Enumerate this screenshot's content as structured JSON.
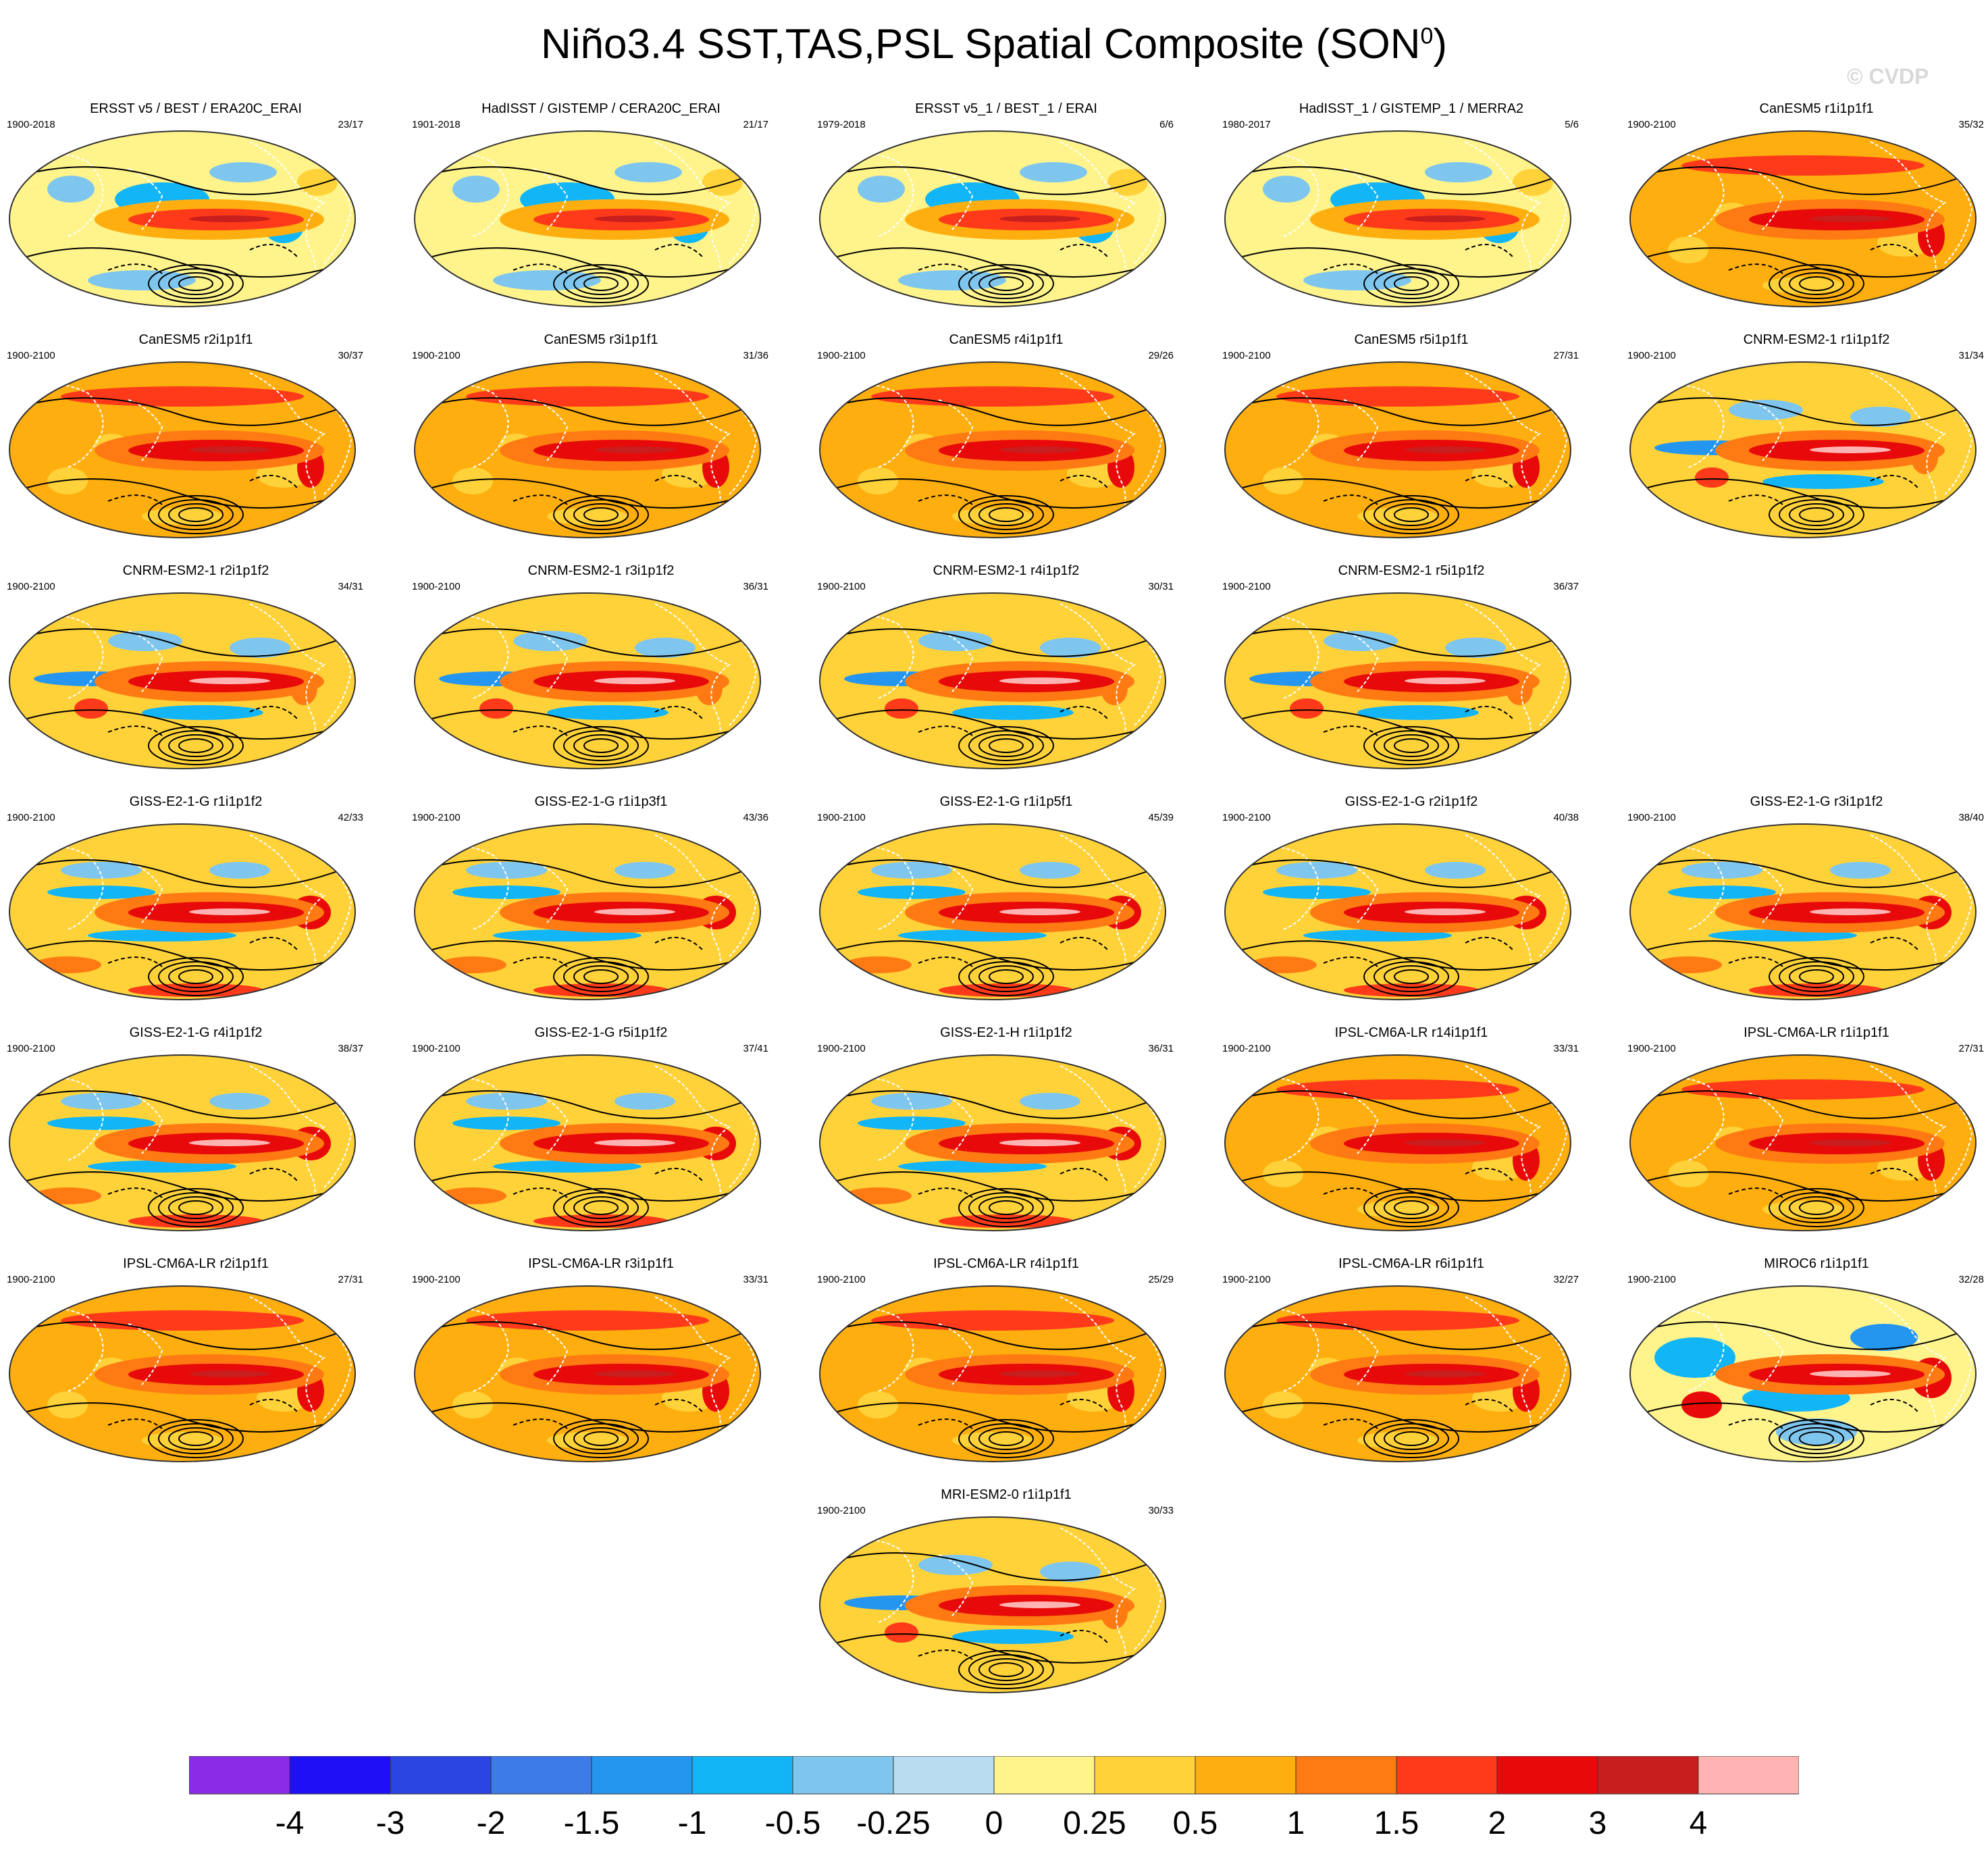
{
  "title": {
    "main": "Niño3.4 SST,TAS,PSL Spatial Composite (SON",
    "sup": "0",
    "close": ")"
  },
  "watermark": "© CVDP",
  "chart_data": {
    "type": "heatmap",
    "projection": "robinson",
    "colorbar": {
      "labels": [
        "-4",
        "-3",
        "-2",
        "-1.5",
        "-1",
        "-0.5",
        "-0.25",
        "0",
        "0.25",
        "0.5",
        "1",
        "1.5",
        "2",
        "3",
        "4"
      ],
      "colors": [
        "#8a2ce6",
        "#1f0ff5",
        "#2a45e0",
        "#3d7ce8",
        "#2596ef",
        "#12b6f7",
        "#7fc6ef",
        "#b9dcf0",
        "#fff48c",
        "#ffd23a",
        "#ffae0f",
        "#ff7a12",
        "#ff3a1a",
        "#e80a0a",
        "#c81e1e",
        "#ffb4b4"
      ]
    },
    "panels": [
      {
        "title": "ERSST v5 / BEST / ERA20C_ERAI",
        "years": "1900-2018",
        "count": "23/17",
        "col": 0,
        "row": 0,
        "style": "obs"
      },
      {
        "title": "HadISST / GISTEMP / CERA20C_ERAI",
        "years": "1901-2018",
        "count": "21/17",
        "col": 1,
        "row": 0,
        "style": "obs"
      },
      {
        "title": "ERSST v5_1 / BEST_1 / ERAI",
        "years": "1979-2018",
        "count": "6/6",
        "col": 2,
        "row": 0,
        "style": "obs"
      },
      {
        "title": "HadISST_1 / GISTEMP_1 / MERRA2",
        "years": "1980-2017",
        "count": "5/6",
        "col": 3,
        "row": 0,
        "style": "obs"
      },
      {
        "title": "CanESM5 r1i1p1f1",
        "years": "1900-2100",
        "count": "35/32",
        "col": 4,
        "row": 0,
        "style": "warm"
      },
      {
        "title": "CanESM5 r2i1p1f1",
        "years": "1900-2100",
        "count": "30/37",
        "col": 0,
        "row": 1,
        "style": "warm"
      },
      {
        "title": "CanESM5 r3i1p1f1",
        "years": "1900-2100",
        "count": "31/36",
        "col": 1,
        "row": 1,
        "style": "warm"
      },
      {
        "title": "CanESM5 r4i1p1f1",
        "years": "1900-2100",
        "count": "29/26",
        "col": 2,
        "row": 1,
        "style": "warm"
      },
      {
        "title": "CanESM5 r5i1p1f1",
        "years": "1900-2100",
        "count": "27/31",
        "col": 3,
        "row": 1,
        "style": "warm"
      },
      {
        "title": "CNRM-ESM2-1 r1i1p1f2",
        "years": "1900-2100",
        "count": "31/34",
        "col": 4,
        "row": 1,
        "style": "mixed"
      },
      {
        "title": "CNRM-ESM2-1 r2i1p1f2",
        "years": "1900-2100",
        "count": "34/31",
        "col": 0,
        "row": 2,
        "style": "mixed"
      },
      {
        "title": "CNRM-ESM2-1 r3i1p1f2",
        "years": "1900-2100",
        "count": "36/31",
        "col": 1,
        "row": 2,
        "style": "mixed"
      },
      {
        "title": "CNRM-ESM2-1 r4i1p1f2",
        "years": "1900-2100",
        "count": "30/31",
        "col": 2,
        "row": 2,
        "style": "mixed"
      },
      {
        "title": "CNRM-ESM2-1 r5i1p1f2",
        "years": "1900-2100",
        "count": "36/37",
        "col": 3,
        "row": 2,
        "style": "mixed"
      },
      {
        "title": "GISS-E2-1-G r1i1p1f2",
        "years": "1900-2100",
        "count": "42/33",
        "col": 0,
        "row": 3,
        "style": "giss"
      },
      {
        "title": "GISS-E2-1-G r1i1p3f1",
        "years": "1900-2100",
        "count": "43/36",
        "col": 1,
        "row": 3,
        "style": "giss"
      },
      {
        "title": "GISS-E2-1-G r1i1p5f1",
        "years": "1900-2100",
        "count": "45/39",
        "col": 2,
        "row": 3,
        "style": "giss"
      },
      {
        "title": "GISS-E2-1-G r2i1p1f2",
        "years": "1900-2100",
        "count": "40/38",
        "col": 3,
        "row": 3,
        "style": "giss"
      },
      {
        "title": "GISS-E2-1-G r3i1p1f2",
        "years": "1900-2100",
        "count": "38/40",
        "col": 4,
        "row": 3,
        "style": "giss"
      },
      {
        "title": "GISS-E2-1-G r4i1p1f2",
        "years": "1900-2100",
        "count": "38/37",
        "col": 0,
        "row": 4,
        "style": "giss"
      },
      {
        "title": "GISS-E2-1-G r5i1p1f2",
        "years": "1900-2100",
        "count": "37/41",
        "col": 1,
        "row": 4,
        "style": "giss"
      },
      {
        "title": "GISS-E2-1-H r1i1p1f2",
        "years": "1900-2100",
        "count": "36/31",
        "col": 2,
        "row": 4,
        "style": "giss"
      },
      {
        "title": "IPSL-CM6A-LR r14i1p1f1",
        "years": "1900-2100",
        "count": "33/31",
        "col": 3,
        "row": 4,
        "style": "warm"
      },
      {
        "title": "IPSL-CM6A-LR r1i1p1f1",
        "years": "1900-2100",
        "count": "27/31",
        "col": 4,
        "row": 4,
        "style": "warm"
      },
      {
        "title": "IPSL-CM6A-LR r2i1p1f1",
        "years": "1900-2100",
        "count": "27/31",
        "col": 0,
        "row": 5,
        "style": "warm"
      },
      {
        "title": "IPSL-CM6A-LR r3i1p1f1",
        "years": "1900-2100",
        "count": "33/31",
        "col": 1,
        "row": 5,
        "style": "warm"
      },
      {
        "title": "IPSL-CM6A-LR r4i1p1f1",
        "years": "1900-2100",
        "count": "25/29",
        "col": 2,
        "row": 5,
        "style": "warm"
      },
      {
        "title": "IPSL-CM6A-LR r6i1p1f1",
        "years": "1900-2100",
        "count": "32/27",
        "col": 3,
        "row": 5,
        "style": "warm"
      },
      {
        "title": "MIROC6 r1i1p1f1",
        "years": "1900-2100",
        "count": "32/28",
        "col": 4,
        "row": 5,
        "style": "miroc"
      },
      {
        "title": "MRI-ESM2-0 r1i1p1f1",
        "years": "1900-2100",
        "count": "30/33",
        "col": 2,
        "row": 6,
        "style": "mixed"
      }
    ]
  }
}
